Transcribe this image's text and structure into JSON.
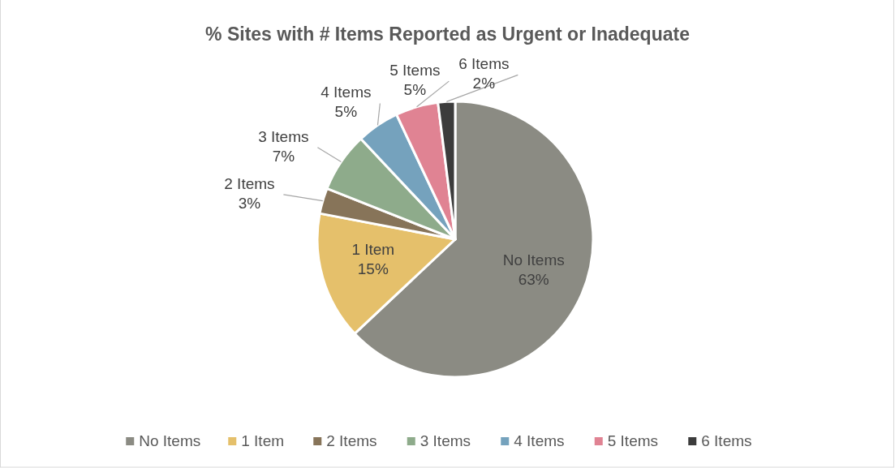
{
  "chart_data": {
    "type": "pie",
    "title": "% Sites with # Items Reported as Urgent or Inadequate",
    "categories": [
      "No Items",
      "1 Item",
      "2 Items",
      "3 Items",
      "4 Items",
      "5 Items",
      "6 Items"
    ],
    "values": [
      63,
      15,
      3,
      7,
      5,
      5,
      2
    ],
    "value_labels": [
      "63%",
      "15%",
      "3%",
      "7%",
      "5%",
      "5%",
      "2%"
    ],
    "colors": [
      "#8b8b83",
      "#e5c06b",
      "#877459",
      "#8eab8b",
      "#75a2bd",
      "#e08393",
      "#3c3c3c"
    ],
    "legend": "bottom"
  }
}
